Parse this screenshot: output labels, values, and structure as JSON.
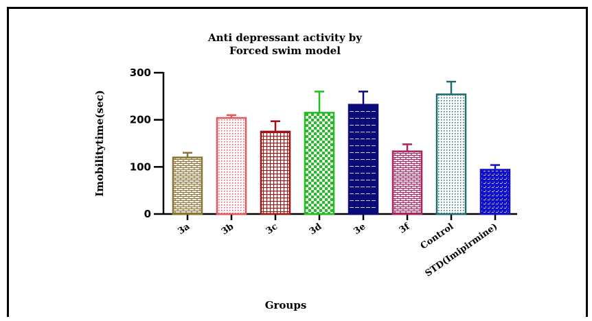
{
  "chart_data": {
    "type": "bar",
    "title_lines": [
      "Anti depressant activity by",
      "Forced swim model"
    ],
    "xlabel": "Groups",
    "ylabel": "Imobilitytime(sec)",
    "ylim": [
      0,
      300
    ],
    "yticks": [
      0,
      100,
      200,
      300
    ],
    "categories": [
      "3a",
      "3b",
      "3c",
      "3d",
      "3e",
      "3f",
      "Control",
      "STD(Imipirmine)"
    ],
    "values": [
      120,
      204,
      175,
      215,
      232,
      133,
      254,
      94
    ],
    "errors": [
      10,
      6,
      22,
      45,
      28,
      15,
      27,
      10
    ],
    "colors": [
      "#8B7536",
      "#E8545C",
      "#9A1414",
      "#1EBE1E",
      "#0A0A78",
      "#A8255F",
      "#1E6B70",
      "#1010C8"
    ],
    "patterns": [
      "brick",
      "dots",
      "grid",
      "checker",
      "hlines",
      "brick",
      "dots",
      "dashgrid"
    ],
    "grid": false,
    "legend": "none"
  }
}
